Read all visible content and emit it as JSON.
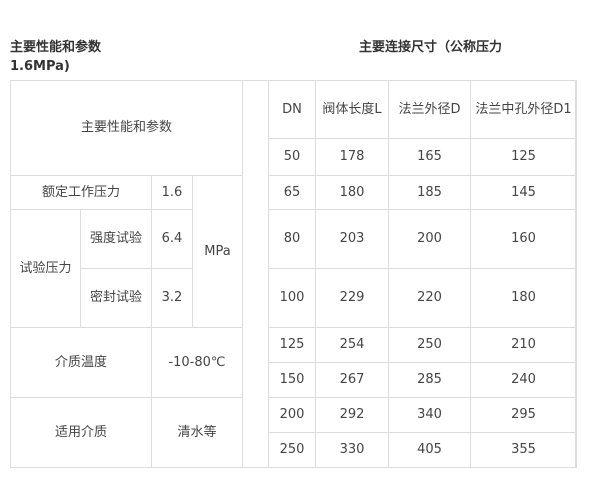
{
  "heading_left": "主要性能和参数",
  "heading_left_cont": "1.6MPa)",
  "heading_right": "主要连接尺寸（公称压力",
  "perf": {
    "title": "主要性能和参数",
    "rated_label": "额定工作压力",
    "rated_value": "1.6",
    "unit": "MPa",
    "test_label": "试验压力",
    "strength_label": "强度试验",
    "strength_value": "6.4",
    "seal_label": "密封试验",
    "seal_value": "3.2",
    "temp_label": "介质温度",
    "temp_value": "-10-80℃",
    "medium_label": "适用介质",
    "medium_value": "清水等"
  },
  "dims": {
    "headers": [
      "DN",
      "阀体长度L",
      "法兰外径D",
      "法兰中孔外径D1"
    ],
    "rows": [
      [
        "50",
        "178",
        "165",
        "125"
      ],
      [
        "65",
        "180",
        "185",
        "145"
      ],
      [
        "80",
        "203",
        "200",
        "160"
      ],
      [
        "100",
        "229",
        "220",
        "180"
      ],
      [
        "125",
        "254",
        "250",
        "210"
      ],
      [
        "150",
        "267",
        "285",
        "240"
      ],
      [
        "200",
        "292",
        "340",
        "295"
      ],
      [
        "250",
        "330",
        "405",
        "355"
      ]
    ]
  }
}
